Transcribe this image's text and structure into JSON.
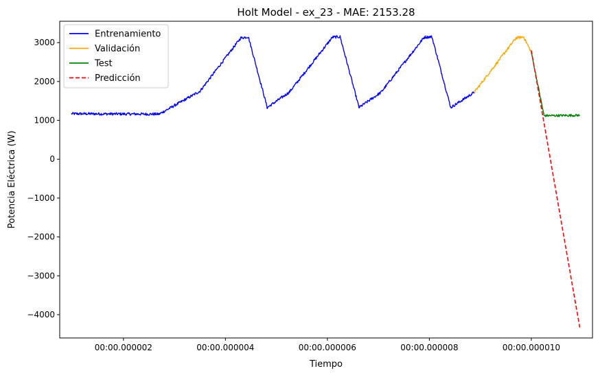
{
  "chart_data": {
    "type": "line",
    "title": "Holt Model - ex_23 - MAE: 2153.28",
    "xlabel": "Tiempo",
    "ylabel": "Potencia Eléctrica (W)",
    "x_unit": "microseconds",
    "xlim": [
      0.75,
      11.2
    ],
    "ylim": [
      -4600,
      3550
    ],
    "x_ticks": [
      {
        "value": 2,
        "label": "00:00.000002"
      },
      {
        "value": 4,
        "label": "00:00.000004"
      },
      {
        "value": 6,
        "label": "00:00.000006"
      },
      {
        "value": 8,
        "label": "00:00.000008"
      },
      {
        "value": 10,
        "label": "00:00.000010"
      }
    ],
    "y_ticks": [
      {
        "value": 3000,
        "label": "3000"
      },
      {
        "value": 2000,
        "label": "2000"
      },
      {
        "value": 1000,
        "label": "1000"
      },
      {
        "value": 0,
        "label": "0"
      },
      {
        "value": -1000,
        "label": "−1000"
      },
      {
        "value": -2000,
        "label": "−2000"
      },
      {
        "value": -3000,
        "label": "−3000"
      },
      {
        "value": -4000,
        "label": "−4000"
      }
    ],
    "grid": false,
    "legend_position": "upper-left",
    "series": [
      {
        "name": "Entrenamiento",
        "color": "#0000ff",
        "style": "solid",
        "noise": 35,
        "points": [
          [
            0.98,
            1170
          ],
          [
            2.7,
            1160
          ],
          [
            3.5,
            1750
          ],
          [
            4.3,
            3120
          ],
          [
            4.45,
            3150
          ],
          [
            4.82,
            1330
          ],
          [
            5.25,
            1720
          ],
          [
            6.1,
            3140
          ],
          [
            6.25,
            3150
          ],
          [
            6.62,
            1330
          ],
          [
            7.05,
            1720
          ],
          [
            7.9,
            3140
          ],
          [
            8.05,
            3150
          ],
          [
            8.42,
            1330
          ],
          [
            8.88,
            1720
          ]
        ]
      },
      {
        "name": "Validación",
        "color": "#ffa500",
        "style": "solid",
        "noise": 35,
        "points": [
          [
            8.88,
            1720
          ],
          [
            9.7,
            3120
          ],
          [
            9.85,
            3150
          ],
          [
            10.0,
            2750
          ]
        ]
      },
      {
        "name": "Test",
        "color": "#008000",
        "style": "solid",
        "noise": 30,
        "points": [
          [
            10.0,
            2750
          ],
          [
            10.25,
            1120
          ],
          [
            10.95,
            1130
          ]
        ]
      },
      {
        "name": "Predicción",
        "color": "#ff0000",
        "style": "dashed",
        "noise": 0,
        "points": [
          [
            10.0,
            2800
          ],
          [
            10.95,
            -4330
          ]
        ]
      }
    ]
  }
}
